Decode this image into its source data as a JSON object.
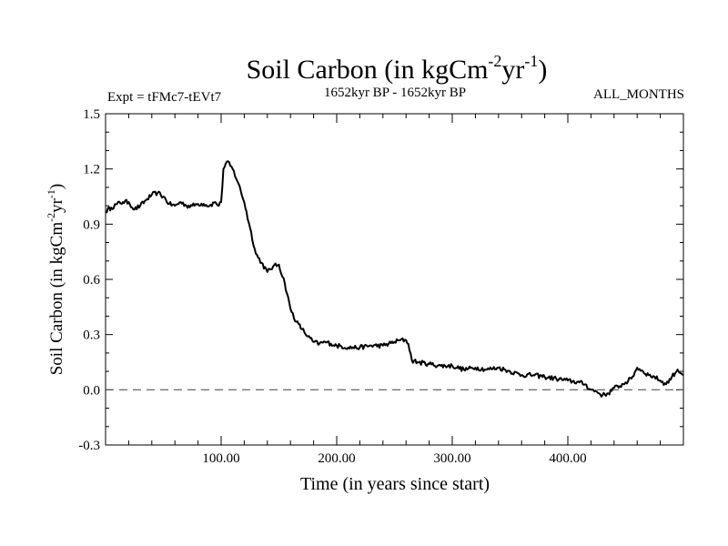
{
  "chart_data": {
    "type": "line",
    "title": {
      "main": "Soil Carbon (in kgCm",
      "sup1": "-2",
      "mid": "yr",
      "sup2": "-1",
      "end": ")"
    },
    "subtitle_left": "Expt = tFMc7-tEVt7",
    "subtitle_center": "1652kyr BP - 1652kyr BP",
    "subtitle_right": "ALL_MONTHS",
    "xlabel": "Time (in years since start)",
    "ylabel": {
      "main": "Soil Carbon (in kgCm",
      "sup1": "-2",
      "mid": "yr",
      "sup2": "-1",
      "end": ")"
    },
    "xlim": [
      0,
      500
    ],
    "ylim": [
      -0.3,
      1.5
    ],
    "xticks": [
      100,
      200,
      300,
      400
    ],
    "xtick_labels": [
      "100.00",
      "200.00",
      "300.00",
      "400.00"
    ],
    "yticks": [
      -0.3,
      0.0,
      0.3,
      0.6,
      0.9,
      1.2,
      1.5
    ],
    "ytick_labels": [
      "-0.3",
      "0.0",
      "0.3",
      "0.6",
      "0.9",
      "1.2",
      "1.5"
    ],
    "reference_line": {
      "y": 0.0,
      "style": "dashed"
    },
    "series": [
      {
        "name": "Soil Carbon",
        "x": [
          0,
          5,
          10,
          15,
          20,
          25,
          30,
          35,
          40,
          45,
          50,
          55,
          60,
          65,
          70,
          75,
          80,
          85,
          90,
          95,
          98,
          100,
          102,
          105,
          110,
          115,
          120,
          125,
          130,
          135,
          140,
          145,
          150,
          155,
          160,
          165,
          170,
          175,
          180,
          185,
          190,
          195,
          200,
          210,
          220,
          230,
          240,
          250,
          255,
          260,
          262,
          265,
          270,
          280,
          290,
          300,
          310,
          320,
          330,
          340,
          350,
          360,
          370,
          380,
          390,
          400,
          410,
          415,
          420,
          425,
          430,
          435,
          440,
          445,
          450,
          455,
          460,
          465,
          470,
          475,
          480,
          485,
          490,
          495,
          500
        ],
        "y": [
          0.97,
          0.99,
          1.01,
          1.02,
          1.02,
          0.98,
          1.0,
          1.03,
          1.06,
          1.07,
          1.05,
          1.01,
          1.0,
          1.02,
          1.0,
          1.0,
          1.01,
          1.01,
          1.0,
          1.02,
          1.0,
          1.02,
          1.2,
          1.24,
          1.2,
          1.12,
          1.02,
          0.88,
          0.74,
          0.69,
          0.64,
          0.67,
          0.68,
          0.58,
          0.44,
          0.37,
          0.33,
          0.29,
          0.26,
          0.25,
          0.26,
          0.25,
          0.24,
          0.23,
          0.23,
          0.24,
          0.24,
          0.26,
          0.27,
          0.27,
          0.25,
          0.16,
          0.15,
          0.14,
          0.13,
          0.13,
          0.11,
          0.12,
          0.11,
          0.12,
          0.1,
          0.08,
          0.08,
          0.07,
          0.06,
          0.05,
          0.04,
          0.03,
          0.0,
          -0.01,
          -0.03,
          -0.02,
          0.01,
          0.02,
          0.04,
          0.06,
          0.12,
          0.1,
          0.08,
          0.07,
          0.05,
          0.03,
          0.07,
          0.11,
          0.08
        ]
      }
    ]
  }
}
